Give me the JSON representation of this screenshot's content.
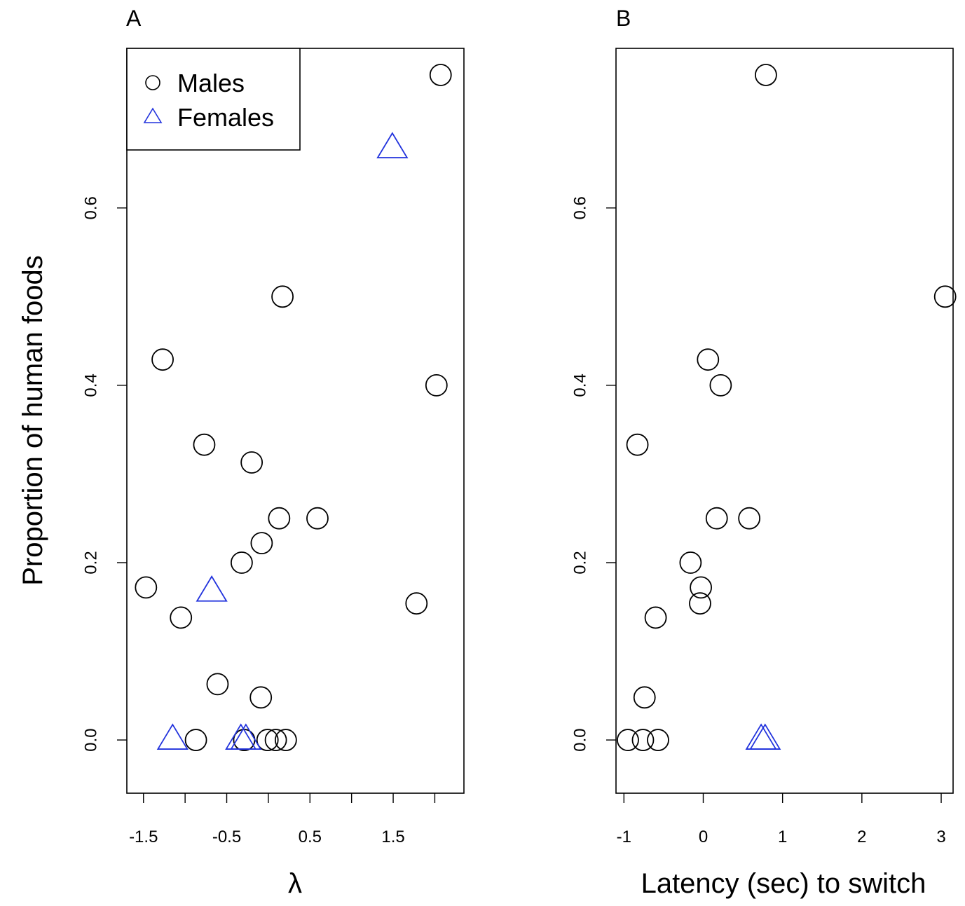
{
  "chart_data": [
    {
      "type": "scatter",
      "panel_label": "A",
      "xlabel": "λ",
      "ylabel": "Proportion of human foods",
      "xlim": [
        -1.7,
        2.35
      ],
      "ylim": [
        -0.06,
        0.78
      ],
      "xticks": [
        -1.5,
        -1.0,
        -0.5,
        0.0,
        0.5,
        1.0,
        1.5,
        2.0
      ],
      "xtick_labels": [
        "-1.5",
        "",
        "-0.5",
        "",
        "0.5",
        "",
        "1.5",
        ""
      ],
      "yticks": [
        0.0,
        0.2,
        0.4,
        0.6
      ],
      "ytick_labels": [
        "0.0",
        "0.2",
        "0.4",
        "0.6"
      ],
      "legend": {
        "position": "top-left",
        "entries": [
          {
            "label": "Males",
            "marker": "circle",
            "color": "#000000"
          },
          {
            "label": "Females",
            "marker": "triangle",
            "color": "#2233dd"
          }
        ]
      },
      "series": [
        {
          "name": "Males",
          "marker": "circle",
          "color": "#000000",
          "points": [
            {
              "x": 2.07,
              "y": 0.75
            },
            {
              "x": 0.17,
              "y": 0.5
            },
            {
              "x": -1.27,
              "y": 0.429
            },
            {
              "x": 2.02,
              "y": 0.4
            },
            {
              "x": -0.77,
              "y": 0.333
            },
            {
              "x": -0.2,
              "y": 0.313
            },
            {
              "x": 0.13,
              "y": 0.25
            },
            {
              "x": 0.59,
              "y": 0.25
            },
            {
              "x": -0.08,
              "y": 0.222
            },
            {
              "x": -0.32,
              "y": 0.2
            },
            {
              "x": -1.47,
              "y": 0.172
            },
            {
              "x": 1.78,
              "y": 0.154
            },
            {
              "x": -1.05,
              "y": 0.138
            },
            {
              "x": -0.61,
              "y": 0.063
            },
            {
              "x": -0.09,
              "y": 0.048
            },
            {
              "x": -0.87,
              "y": 0.0
            },
            {
              "x": -0.29,
              "y": 0.0
            },
            {
              "x": -0.01,
              "y": 0.0
            },
            {
              "x": 0.09,
              "y": 0.0
            },
            {
              "x": 0.21,
              "y": 0.0
            }
          ]
        },
        {
          "name": "Females",
          "marker": "triangle",
          "color": "#2233dd",
          "points": [
            {
              "x": 1.49,
              "y": 0.667
            },
            {
              "x": -0.68,
              "y": 0.167
            },
            {
              "x": -1.15,
              "y": 0.0
            },
            {
              "x": -0.33,
              "y": 0.0
            },
            {
              "x": -0.27,
              "y": 0.0
            }
          ]
        }
      ]
    },
    {
      "type": "scatter",
      "panel_label": "B",
      "xlabel": "Latency (sec) to switch",
      "ylabel": "",
      "xlim": [
        -1.1,
        3.15
      ],
      "ylim": [
        -0.06,
        0.78
      ],
      "xticks": [
        -1,
        0,
        1,
        2,
        3
      ],
      "xtick_labels": [
        "-1",
        "0",
        "1",
        "2",
        "3"
      ],
      "yticks": [
        0.0,
        0.2,
        0.4,
        0.6
      ],
      "ytick_labels": [
        "0.0",
        "0.2",
        "0.4",
        "0.6"
      ],
      "series": [
        {
          "name": "Males",
          "marker": "circle",
          "color": "#000000",
          "points": [
            {
              "x": 0.79,
              "y": 0.75
            },
            {
              "x": 3.05,
              "y": 0.5
            },
            {
              "x": 0.06,
              "y": 0.429
            },
            {
              "x": 0.22,
              "y": 0.4
            },
            {
              "x": -0.83,
              "y": 0.333
            },
            {
              "x": 0.17,
              "y": 0.25
            },
            {
              "x": 0.58,
              "y": 0.25
            },
            {
              "x": -0.16,
              "y": 0.2
            },
            {
              "x": -0.03,
              "y": 0.172
            },
            {
              "x": -0.04,
              "y": 0.154
            },
            {
              "x": -0.6,
              "y": 0.138
            },
            {
              "x": -0.74,
              "y": 0.048
            },
            {
              "x": -0.95,
              "y": 0.0
            },
            {
              "x": -0.76,
              "y": 0.0
            },
            {
              "x": -0.57,
              "y": 0.0
            }
          ]
        },
        {
          "name": "Females",
          "marker": "triangle",
          "color": "#2233dd",
          "points": [
            {
              "x": 0.73,
              "y": 0.0
            },
            {
              "x": 0.78,
              "y": 0.0
            }
          ]
        }
      ]
    }
  ]
}
